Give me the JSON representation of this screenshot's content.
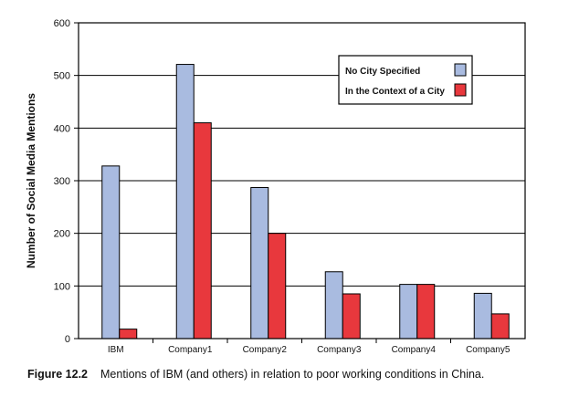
{
  "chart_data": {
    "type": "bar",
    "title": "",
    "xlabel": "",
    "ylabel": "Number of Social Media Mentions",
    "ylim": [
      0,
      600
    ],
    "yticks": [
      0,
      100,
      200,
      300,
      400,
      500,
      600
    ],
    "grid": true,
    "legend_position": "top-right",
    "categories": [
      "IBM",
      "Company1",
      "Company2",
      "Company3",
      "Company4",
      "Company5"
    ],
    "series": [
      {
        "name": "No City Specified",
        "color": "#a9bbe0",
        "values": [
          328,
          521,
          287,
          127,
          103,
          86
        ]
      },
      {
        "name": "In the Context of a City",
        "color": "#e8383d",
        "values": [
          18,
          410,
          200,
          85,
          103,
          47
        ]
      }
    ]
  },
  "caption": {
    "figure_label": "Figure 12.2",
    "text": "Mentions of IBM (and others) in relation to poor working conditions in China."
  }
}
